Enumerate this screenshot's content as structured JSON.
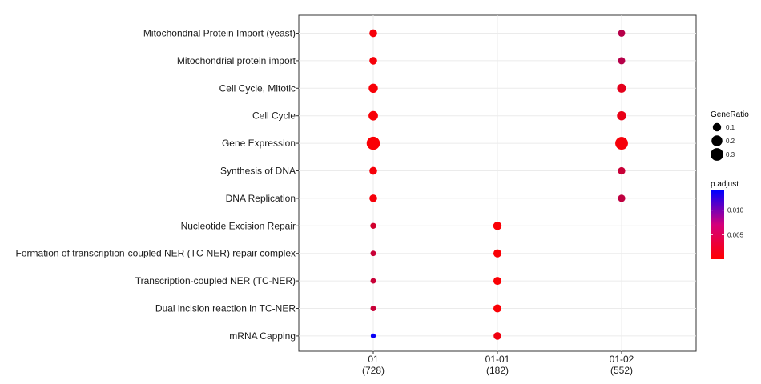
{
  "chart_data": {
    "type": "scatter",
    "categories": [
      "01\n(728)",
      "01-01\n(182)",
      "01-02\n(552)"
    ],
    "terms": [
      "Mitochondrial Protein Import (yeast)",
      "Mitochondrial protein import",
      "Cell Cycle, Mitotic",
      "Cell Cycle",
      "Gene Expression",
      "Synthesis of DNA",
      "DNA Replication",
      "Nucleotide Excision Repair",
      "Formation of transcription-coupled NER (TC-NER) repair complex",
      "Transcription-coupled NER (TC-NER)",
      "Dual incision reaction in TC-NER",
      "mRNA Capping"
    ],
    "points": [
      {
        "term": "Mitochondrial Protein Import (yeast)",
        "cluster": "01",
        "gene_ratio": 0.08,
        "p_adjust": 0.0005
      },
      {
        "term": "Mitochondrial protein import",
        "cluster": "01",
        "gene_ratio": 0.08,
        "p_adjust": 0.0005
      },
      {
        "term": "Cell Cycle, Mitotic",
        "cluster": "01",
        "gene_ratio": 0.13,
        "p_adjust": 0.0004
      },
      {
        "term": "Cell Cycle",
        "cluster": "01",
        "gene_ratio": 0.14,
        "p_adjust": 0.0004
      },
      {
        "term": "Gene Expression",
        "cluster": "01",
        "gene_ratio": 0.33,
        "p_adjust": 0.0003
      },
      {
        "term": "Synthesis of DNA",
        "cluster": "01",
        "gene_ratio": 0.08,
        "p_adjust": 0.0005
      },
      {
        "term": "DNA Replication",
        "cluster": "01",
        "gene_ratio": 0.08,
        "p_adjust": 0.0005
      },
      {
        "term": "Nucleotide Excision Repair",
        "cluster": "01",
        "gene_ratio": 0.035,
        "p_adjust": 0.0025
      },
      {
        "term": "Formation of transcription-coupled NER (TC-NER) repair complex",
        "cluster": "01",
        "gene_ratio": 0.028,
        "p_adjust": 0.003
      },
      {
        "term": "Transcription-coupled NER (TC-NER)",
        "cluster": "01",
        "gene_ratio": 0.028,
        "p_adjust": 0.003
      },
      {
        "term": "Dual incision reaction in TC-NER",
        "cluster": "01",
        "gene_ratio": 0.028,
        "p_adjust": 0.003
      },
      {
        "term": "mRNA Capping",
        "cluster": "01",
        "gene_ratio": 0.02,
        "p_adjust": 0.0135
      },
      {
        "term": "Nucleotide Excision Repair",
        "cluster": "01-01",
        "gene_ratio": 0.1,
        "p_adjust": 0.0003
      },
      {
        "term": "Formation of transcription-coupled NER (TC-NER) repair complex",
        "cluster": "01-01",
        "gene_ratio": 0.09,
        "p_adjust": 0.0003
      },
      {
        "term": "Transcription-coupled NER (TC-NER)",
        "cluster": "01-01",
        "gene_ratio": 0.09,
        "p_adjust": 0.0003
      },
      {
        "term": "Dual incision reaction in TC-NER",
        "cluster": "01-01",
        "gene_ratio": 0.09,
        "p_adjust": 0.0003
      },
      {
        "term": "mRNA Capping",
        "cluster": "01-01",
        "gene_ratio": 0.08,
        "p_adjust": 0.0008
      },
      {
        "term": "Mitochondrial Protein Import (yeast)",
        "cluster": "01-02",
        "gene_ratio": 0.06,
        "p_adjust": 0.004
      },
      {
        "term": "Mitochondrial protein import",
        "cluster": "01-02",
        "gene_ratio": 0.065,
        "p_adjust": 0.004
      },
      {
        "term": "Cell Cycle, Mitotic",
        "cluster": "01-02",
        "gene_ratio": 0.12,
        "p_adjust": 0.0015
      },
      {
        "term": "Cell Cycle",
        "cluster": "01-02",
        "gene_ratio": 0.13,
        "p_adjust": 0.0012
      },
      {
        "term": "Gene Expression",
        "cluster": "01-02",
        "gene_ratio": 0.3,
        "p_adjust": 0.0005
      },
      {
        "term": "Synthesis of DNA",
        "cluster": "01-02",
        "gene_ratio": 0.07,
        "p_adjust": 0.003
      },
      {
        "term": "DNA Replication",
        "cluster": "01-02",
        "gene_ratio": 0.07,
        "p_adjust": 0.0035
      }
    ],
    "size_legend": {
      "title": "GeneRatio",
      "values": [
        0.1,
        0.2,
        0.3
      ],
      "labels": [
        "0.1",
        "0.2",
        "0.3"
      ]
    },
    "color_legend": {
      "title": "p.adjust",
      "range": [
        0,
        0.014
      ],
      "breaks": [
        0.005,
        0.01
      ],
      "labels": [
        "0.005",
        "0.010"
      ],
      "low_color": "#ff0000",
      "high_color": "#0000ff"
    },
    "gene_ratio_range": [
      0,
      0.34
    ],
    "grid": true,
    "legend_position": "right"
  }
}
